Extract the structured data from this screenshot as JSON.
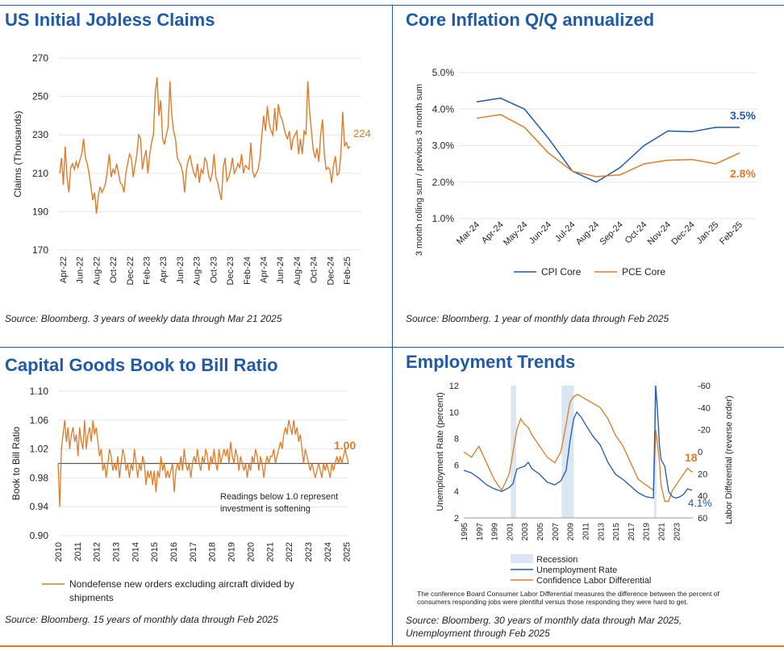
{
  "colors": {
    "blue": "#1f5aa8",
    "orange": "#e07b27",
    "recession": "#dbe6f3"
  },
  "charts": [
    {
      "title": "US Initial Jobless Claims",
      "source": "Source: Bloomberg. 3 years of weekly data through Mar 21 2025",
      "ylabel": "Claims (Thousands)",
      "yticks": [
        "270",
        "250",
        "230",
        "210",
        "190",
        "170"
      ],
      "xticks": [
        "Apr-22",
        "Jun-22",
        "Aug-22",
        "Oct-22",
        "Dec-22",
        "Feb-23",
        "Apr-23",
        "Jun-23",
        "Aug-23",
        "Oct-23",
        "Dec-23",
        "Feb-24",
        "Apr-24",
        "Jun-24",
        "Aug-24",
        "Oct-24",
        "Dec-24",
        "Feb-25"
      ],
      "last_label": "224"
    },
    {
      "title": "Core Inflation Q/Q annualized",
      "source": "Source: Bloomberg. 1 year of monthly data through Feb 2025",
      "ylabel": "3 month rolling sum / previous 3 month sum",
      "yticks": [
        "5.0%",
        "4.0%",
        "3.0%",
        "2.0%",
        "1.0%"
      ],
      "xticks": [
        "Mar-24",
        "Apr-24",
        "May-24",
        "Jun-24",
        "Jul-24",
        "Aug-24",
        "Sep-24",
        "Oct-24",
        "Nov-24",
        "Dec-24",
        "Jan-25",
        "Feb-25"
      ],
      "legend": [
        "CPI Core",
        "PCE Core"
      ],
      "label_cpi": "3.5%",
      "label_pce": "2.8%"
    },
    {
      "title": "Capital Goods Book to Bill Ratio",
      "source": "Source: Bloomberg. 15 years of monthly data through Feb 2025",
      "ylabel": "Book to Bill Ratio",
      "yticks": [
        "1.10",
        "1.06",
        "1.02",
        "0.98",
        "0.94",
        "0.90"
      ],
      "xticks": [
        "2010",
        "2011",
        "2012",
        "2013",
        "2014",
        "2015",
        "2016",
        "2017",
        "2018",
        "2019",
        "2020",
        "2021",
        "2022",
        "2023",
        "2024",
        "2025"
      ],
      "annotation_line1": "Readings below 1.0 represent",
      "annotation_line2": "investment is softening",
      "last_label": "1.00",
      "legend_line1": "Nondefense new orders excluding aircraft divided by",
      "legend_line2": "shipments"
    },
    {
      "title": "Employment Trends",
      "source_line1": "Source: Bloomberg. 30 years of monthly data through Mar 2025,",
      "source_line2": "Unemployment through Feb 2025",
      "ylabel_left": "Unemployment Rate (percent)",
      "ylabel_right": "Labor Differential (reverse order)",
      "yticks_left": [
        "12",
        "10",
        "8",
        "6",
        "4",
        "2"
      ],
      "yticks_right": [
        "-60",
        "-40",
        "-20",
        "0",
        "20",
        "40",
        "60"
      ],
      "xticks": [
        "1995",
        "1997",
        "1999",
        "2001",
        "2003",
        "2005",
        "2007",
        "2009",
        "2011",
        "2013",
        "2015",
        "2017",
        "2019",
        "2021",
        "2023"
      ],
      "legend": [
        "Recession",
        "Unemployment Rate",
        "Confidence Labor Differential"
      ],
      "note_line1": "The conference Board Consumer Labor Differential measures the difference between the percent of",
      "note_line2": "consumers responding jobs were plentiful versus those responding they were hard to get.",
      "label_diff": "18",
      "label_unemp": "4.1%"
    }
  ],
  "chart_data": [
    {
      "type": "line",
      "title": "US Initial Jobless Claims",
      "ylabel": "Claims (Thousands)",
      "ylim": [
        170,
        270
      ],
      "x_start": "Apr-22",
      "x_end": "Mar-25",
      "series": [
        {
          "values": [
            210,
            218,
            204,
            224,
            208,
            200,
            213,
            215,
            212,
            216,
            213,
            217,
            220,
            228,
            218,
            215,
            210,
            203,
            196,
            200,
            189,
            198,
            203,
            200,
            202,
            205,
            212,
            220,
            208,
            212,
            210,
            215,
            210,
            205,
            204,
            200,
            210,
            215,
            220,
            218,
            208,
            214,
            220,
            230,
            228,
            212,
            218,
            222,
            210,
            220,
            226,
            230,
            252,
            260,
            240,
            248,
            228,
            225,
            230,
            234,
            258,
            240,
            232,
            228,
            218,
            216,
            214,
            210,
            200,
            212,
            217,
            219,
            214,
            210,
            208,
            215,
            205,
            212,
            210,
            218,
            216,
            209,
            206,
            210,
            220,
            208,
            205,
            200,
            196,
            213,
            218,
            206,
            208,
            212,
            218,
            210,
            212,
            215,
            213,
            220,
            210,
            214,
            213,
            212,
            226,
            211,
            208,
            210,
            212,
            218,
            230,
            240,
            232,
            245,
            236,
            232,
            230,
            244,
            232,
            246,
            240,
            238,
            234,
            230,
            228,
            232,
            222,
            228,
            230,
            232,
            220,
            228,
            220,
            232,
            230,
            258,
            242,
            232,
            222,
            218,
            223,
            216,
            230,
            238,
            220,
            212,
            213,
            212,
            205,
            214,
            219,
            209,
            210,
            220,
            242,
            224,
            226,
            223,
            224
          ]
        }
      ]
    },
    {
      "type": "line",
      "title": "Core Inflation Q/Q annualized",
      "ylabel": "3 month rolling sum / previous 3 month sum",
      "categories": [
        "Mar-24",
        "Apr-24",
        "May-24",
        "Jun-24",
        "Jul-24",
        "Aug-24",
        "Sep-24",
        "Oct-24",
        "Nov-24",
        "Dec-24",
        "Jan-25",
        "Feb-25"
      ],
      "ylim": [
        1.0,
        5.0
      ],
      "series": [
        {
          "name": "CPI Core",
          "values": [
            4.2,
            4.3,
            4.0,
            3.2,
            2.3,
            2.0,
            2.4,
            3.0,
            3.4,
            3.38,
            3.5,
            3.5
          ]
        },
        {
          "name": "PCE Core",
          "values": [
            3.75,
            3.85,
            3.5,
            2.8,
            2.3,
            2.15,
            2.2,
            2.5,
            2.6,
            2.62,
            2.5,
            2.8
          ]
        }
      ]
    },
    {
      "type": "line",
      "title": "Capital Goods Book to Bill Ratio",
      "ylabel": "Book to Bill Ratio",
      "ylim": [
        0.9,
        1.1
      ],
      "x_start": 2010,
      "x_end": 2025.1,
      "reference_line": 1.0,
      "series": [
        {
          "name": "Nondefense new orders excluding aircraft divided by shipments",
          "values": [
            1.0,
            0.94,
            1.02,
            1.04,
            1.06,
            1.03,
            1.05,
            1.02,
            1.04,
            1.05,
            1.03,
            1.04,
            1.01,
            1.05,
            1.03,
            1.02,
            1.06,
            1.02,
            1.04,
            1.05,
            1.03,
            1.06,
            1.04,
            1.05,
            1.03,
            1.01,
            1.02,
            0.99,
            1.0,
            0.98,
            1.0,
            1.02,
            1.01,
            0.99,
            1.0,
            0.99,
            1.01,
            0.98,
            1.0,
            1.02,
            1.01,
            0.99,
            1.0,
            0.98,
            1.0,
            0.99,
            1.02,
            1.0,
            0.98,
            1.0,
            0.99,
            1.01,
            1.0,
            0.97,
            0.99,
            0.98,
            0.99,
            0.97,
            0.99,
            0.96,
            0.99,
            0.98,
            1.01,
            0.99,
            1.0,
            0.98,
            0.99,
            0.98,
            0.99,
            1.0,
            0.96,
            0.99,
            1.0,
            0.99,
            1.01,
            0.99,
            1.02,
            1.0,
            0.99,
            1.0,
            0.98,
            1.0,
            1.01,
            1.0,
            1.02,
            1.0,
            0.99,
            1.01,
            1.0,
            1.02,
            1.01,
            0.99,
            1.01,
            1.0,
            1.02,
            1.0,
            0.99,
            1.02,
            1.0,
            1.01,
            1.02,
            1.01,
            1.02,
            1.0,
            1.03,
            1.01,
            1.0,
            1.02,
            1.01,
            0.99,
            1.01,
            1.0,
            0.99,
            1.0,
            0.98,
            1.0,
            0.99,
            1.01,
            1.0,
            1.02,
            1.01,
            0.99,
            1.01,
            1.0,
            0.98,
            1.0,
            1.01,
            1.0,
            1.01,
            1.01,
            1.02,
            1.0,
            1.01,
            1.02,
            1.03,
            1.02,
            1.04,
            1.05,
            1.04,
            1.06,
            1.05,
            1.04,
            1.06,
            1.04,
            1.05,
            1.03,
            1.04,
            1.02,
            1.0,
            1.02,
            1.01,
            1.0,
            0.99,
            1.0,
            0.99,
            0.98,
            0.99,
            1.0,
            0.99,
            0.98,
            1.0,
            0.99,
            1.0,
            0.99,
            0.98,
            1.0,
            0.99,
            1.0,
            1.01,
            1.0,
            1.01,
            1.0,
            1.01,
            1.02,
            1.01,
            1.0
          ]
        }
      ]
    },
    {
      "type": "line",
      "title": "Employment Trends",
      "ylabel": "Unemployment Rate (percent)",
      "ylabel_right": "Labor Differential (reverse order)",
      "ylim": [
        2,
        12
      ],
      "ylim_right": [
        -60,
        60
      ],
      "x_start": 1995,
      "x_end": 2025.2,
      "recessions": [
        [
          2001.2,
          2001.9
        ],
        [
          2007.9,
          2009.5
        ],
        [
          2020.1,
          2020.4
        ]
      ],
      "series": [
        {
          "name": "Unemployment Rate",
          "axis": "left",
          "points": [
            [
              1995,
              5.6
            ],
            [
              1996,
              5.4
            ],
            [
              1997,
              5.0
            ],
            [
              1998,
              4.5
            ],
            [
              1999,
              4.2
            ],
            [
              2000,
              4.0
            ],
            [
              2001,
              4.3
            ],
            [
              2001.5,
              4.6
            ],
            [
              2002,
              5.7
            ],
            [
              2002.5,
              5.8
            ],
            [
              2003,
              5.9
            ],
            [
              2003.5,
              6.2
            ],
            [
              2004,
              5.7
            ],
            [
              2005,
              5.3
            ],
            [
              2006,
              4.7
            ],
            [
              2007,
              4.5
            ],
            [
              2007.8,
              4.8
            ],
            [
              2008.5,
              5.6
            ],
            [
              2009,
              7.8
            ],
            [
              2009.5,
              9.5
            ],
            [
              2009.9,
              10.0
            ],
            [
              2010.5,
              9.6
            ],
            [
              2011,
              9.1
            ],
            [
              2012,
              8.2
            ],
            [
              2013,
              7.5
            ],
            [
              2014,
              6.2
            ],
            [
              2015,
              5.3
            ],
            [
              2016,
              4.9
            ],
            [
              2017,
              4.4
            ],
            [
              2018,
              3.9
            ],
            [
              2019,
              3.6
            ],
            [
              2020,
              3.5
            ],
            [
              2020.3,
              12.0
            ],
            [
              2020.5,
              10.5
            ],
            [
              2020.8,
              7.5
            ],
            [
              2021,
              6.4
            ],
            [
              2021.5,
              5.9
            ],
            [
              2022,
              4.0
            ],
            [
              2022.5,
              3.6
            ],
            [
              2023,
              3.5
            ],
            [
              2023.5,
              3.6
            ],
            [
              2024,
              3.8
            ],
            [
              2024.5,
              4.2
            ],
            [
              2025,
              4.1
            ],
            [
              2025.1,
              4.1
            ]
          ]
        },
        {
          "name": "Confidence Labor Differential",
          "axis": "right",
          "points": [
            [
              1995,
              0
            ],
            [
              1996,
              5
            ],
            [
              1997,
              -5
            ],
            [
              1998,
              10
            ],
            [
              1999,
              25
            ],
            [
              2000,
              35
            ],
            [
              2001,
              20
            ],
            [
              2001.5,
              0
            ],
            [
              2002,
              -20
            ],
            [
              2002.5,
              -30
            ],
            [
              2003,
              -25
            ],
            [
              2003.5,
              -22
            ],
            [
              2004,
              -15
            ],
            [
              2005,
              -5
            ],
            [
              2006,
              5
            ],
            [
              2007,
              10
            ],
            [
              2007.8,
              0
            ],
            [
              2008.5,
              -25
            ],
            [
              2009,
              -45
            ],
            [
              2009.5,
              -50
            ],
            [
              2010,
              -52
            ],
            [
              2011,
              -48
            ],
            [
              2012,
              -44
            ],
            [
              2013,
              -40
            ],
            [
              2014,
              -30
            ],
            [
              2015,
              -15
            ],
            [
              2016,
              -5
            ],
            [
              2017,
              10
            ],
            [
              2018,
              25
            ],
            [
              2019,
              30
            ],
            [
              2020,
              35
            ],
            [
              2020.3,
              -20
            ],
            [
              2020.5,
              -10
            ],
            [
              2020.8,
              10
            ],
            [
              2021,
              30
            ],
            [
              2021.5,
              45
            ],
            [
              2022,
              45
            ],
            [
              2022.5,
              35
            ],
            [
              2023,
              30
            ],
            [
              2023.5,
              25
            ],
            [
              2024,
              20
            ],
            [
              2024.5,
              15
            ],
            [
              2025,
              18
            ],
            [
              2025.2,
              18
            ]
          ]
        }
      ]
    }
  ]
}
